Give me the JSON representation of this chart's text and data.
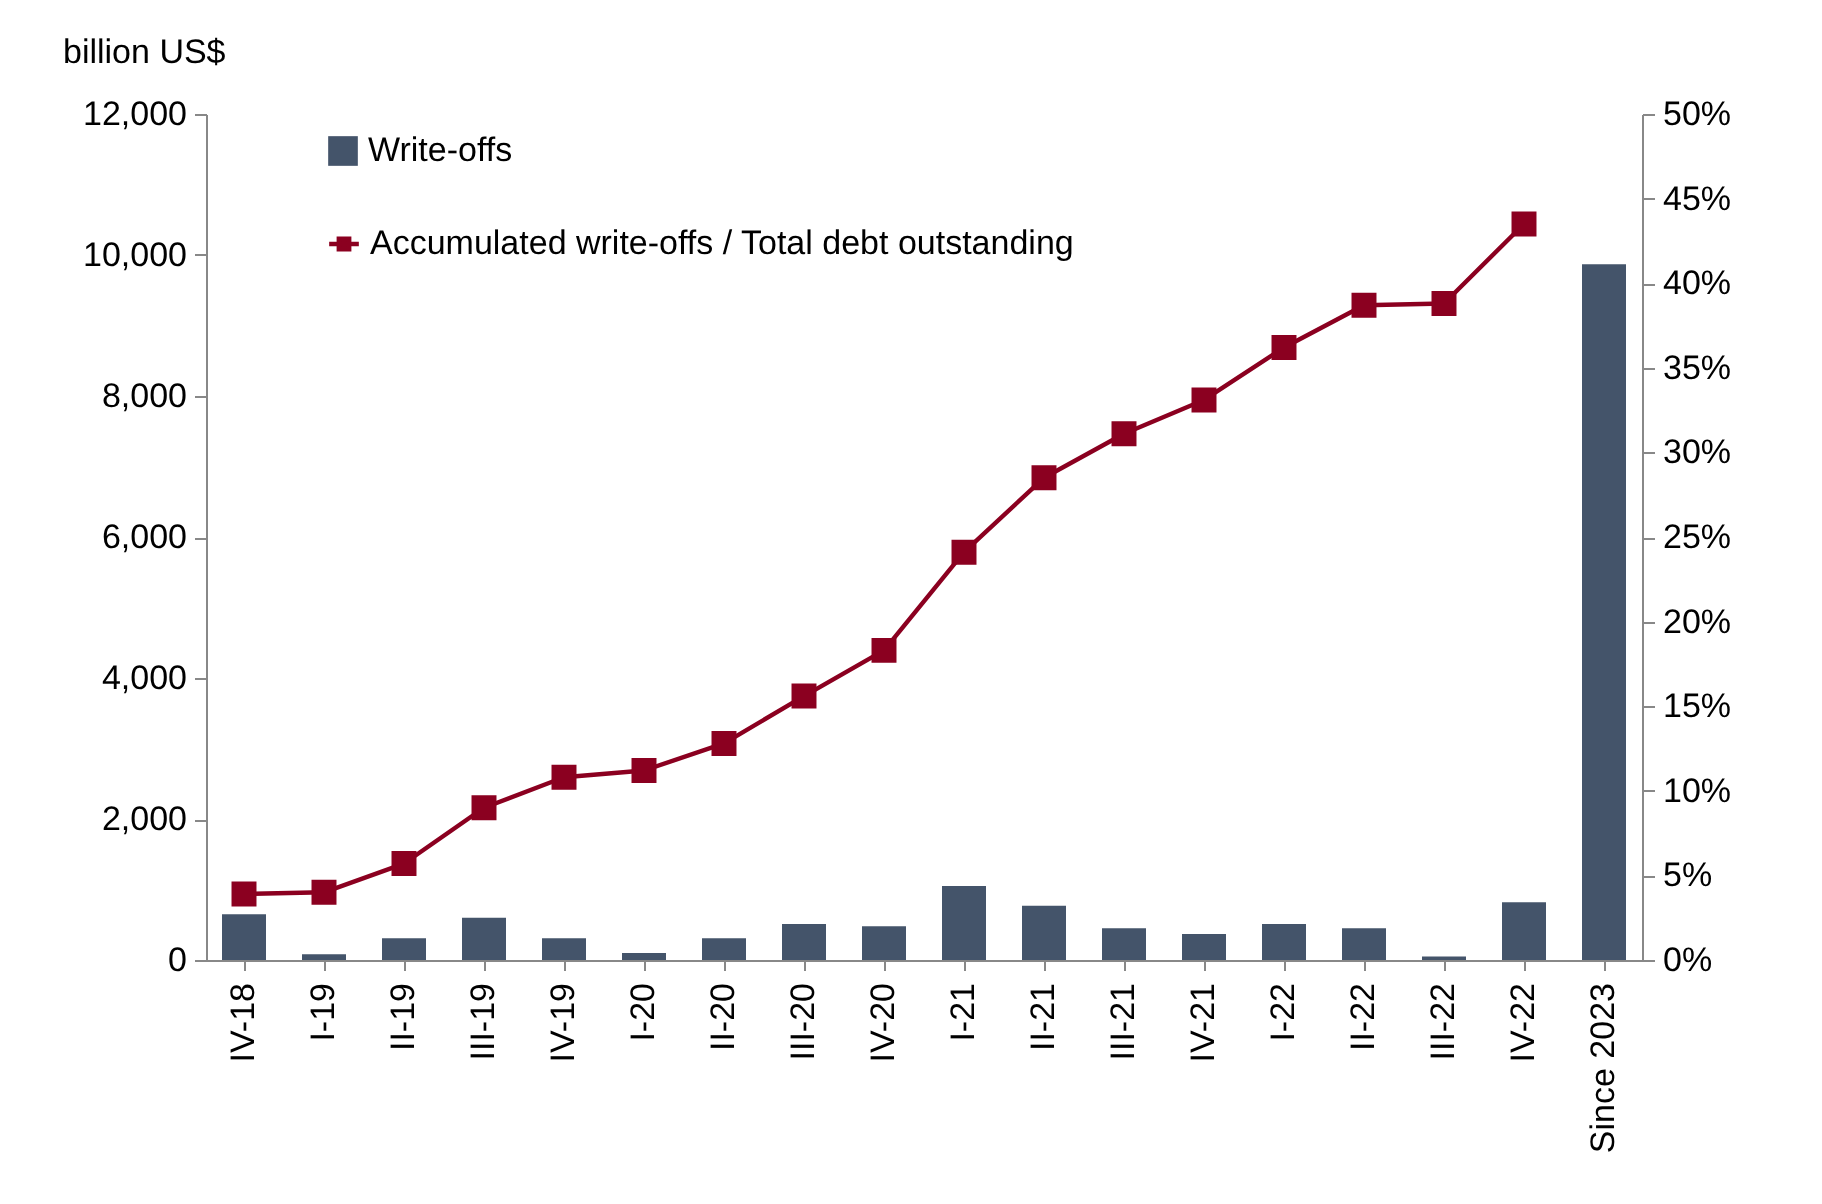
{
  "chart_data": {
    "type": "bar",
    "ylabel": "billion US$",
    "categories": [
      "IV-18",
      "I-19",
      "II-19",
      "III-19",
      "IV-19",
      "I-20",
      "II-20",
      "III-20",
      "IV-20",
      "I-21",
      "II-21",
      "III-21",
      "IV-21",
      "I-22",
      "II-22",
      "III-22",
      "IV-22",
      "Since 2023"
    ],
    "series": [
      {
        "name": "Write-offs",
        "color": "#44546a",
        "values": [
          650,
          80,
          310,
          600,
          310,
          100,
          310,
          510,
          480,
          1050,
          770,
          450,
          370,
          510,
          450,
          50,
          820,
          9870
        ]
      },
      {
        "name": "Accumulated write-offs / Total debt outstanding",
        "type": "line",
        "axis": "y2",
        "color": "#8b0020",
        "marker": "square",
        "values": [
          3.9,
          4.0,
          5.7,
          9.0,
          10.8,
          11.2,
          12.8,
          15.6,
          18.3,
          24.1,
          28.5,
          31.1,
          33.1,
          36.2,
          38.7,
          38.8,
          43.5,
          null
        ]
      }
    ],
    "ylim": [
      0,
      12000
    ],
    "yticks": [
      0,
      {
        "value": 2000,
        "label": "2,000"
      },
      {
        "value": 4000,
        "label": "4,000"
      },
      {
        "value": 6000,
        "label": "6,000"
      },
      {
        "value": 8000,
        "label": "8,000"
      },
      {
        "value": 10000,
        "label": "10,000"
      },
      {
        "value": 12000,
        "label": "12,000"
      }
    ],
    "y2lim": [
      0,
      50
    ],
    "y2ticks": [
      {
        "value": 0,
        "label": "0%"
      },
      {
        "value": 5,
        "label": "5%"
      },
      {
        "value": 10,
        "label": "10%"
      },
      {
        "value": 15,
        "label": "15%"
      },
      {
        "value": 20,
        "label": "20%"
      },
      {
        "value": 25,
        "label": "25%"
      },
      {
        "value": 30,
        "label": "30%"
      },
      {
        "value": 35,
        "label": "35%"
      },
      {
        "value": 40,
        "label": "40%"
      },
      {
        "value": 45,
        "label": "45%"
      },
      {
        "value": 50,
        "label": "50%"
      }
    ],
    "grid": false,
    "legend": "top left"
  }
}
